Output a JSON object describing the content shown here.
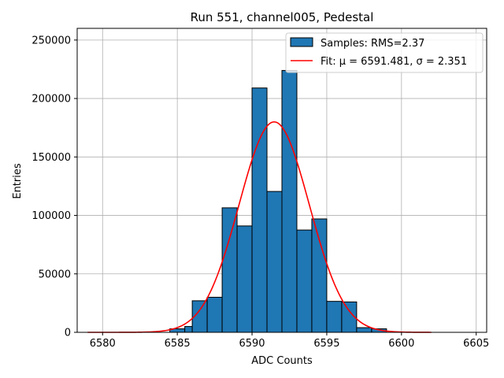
{
  "chart_data": {
    "type": "bar",
    "title": "Run 551, channel005, Pedestal",
    "xlabel": "ADC Counts",
    "ylabel": "Entries",
    "xlim": [
      6578.3,
      6605.7
    ],
    "ylim": [
      0,
      260000
    ],
    "xticks": [
      6580,
      6585,
      6590,
      6595,
      6600,
      6605
    ],
    "yticks": [
      0,
      50000,
      100000,
      150000,
      200000,
      250000
    ],
    "grid": true,
    "legend_position": "top-right",
    "bar_color": "#1f77b4",
    "fit_color": "#ff0000",
    "histogram": {
      "name": "Samples: RMS=2.37",
      "bins": [
        {
          "x0": 6584.5,
          "x1": 6585.5,
          "count": 3000
        },
        {
          "x0": 6585.5,
          "x1": 6586.0,
          "count": 5000
        },
        {
          "x0": 6586.0,
          "x1": 6587.0,
          "count": 27000
        },
        {
          "x0": 6587.0,
          "x1": 6588.0,
          "count": 30000
        },
        {
          "x0": 6588.0,
          "x1": 6589.0,
          "count": 106500
        },
        {
          "x0": 6589.0,
          "x1": 6590.0,
          "count": 91000
        },
        {
          "x0": 6590.0,
          "x1": 6591.0,
          "count": 209000
        },
        {
          "x0": 6591.0,
          "x1": 6592.0,
          "count": 120500
        },
        {
          "x0": 6592.0,
          "x1": 6593.0,
          "count": 224000
        },
        {
          "x0": 6593.0,
          "x1": 6594.0,
          "count": 87500
        },
        {
          "x0": 6594.0,
          "x1": 6595.0,
          "count": 97000
        },
        {
          "x0": 6595.0,
          "x1": 6596.0,
          "count": 26500
        },
        {
          "x0": 6596.0,
          "x1": 6597.0,
          "count": 26000
        },
        {
          "x0": 6597.0,
          "x1": 6598.0,
          "count": 4000
        },
        {
          "x0": 6598.0,
          "x1": 6599.0,
          "count": 3000
        }
      ]
    },
    "fit": {
      "name": "Fit: μ = 6591.481, σ = 2.351",
      "mu": 6591.481,
      "sigma": 2.351,
      "amplitude": 180000,
      "x_range": [
        6579,
        6602
      ]
    }
  }
}
